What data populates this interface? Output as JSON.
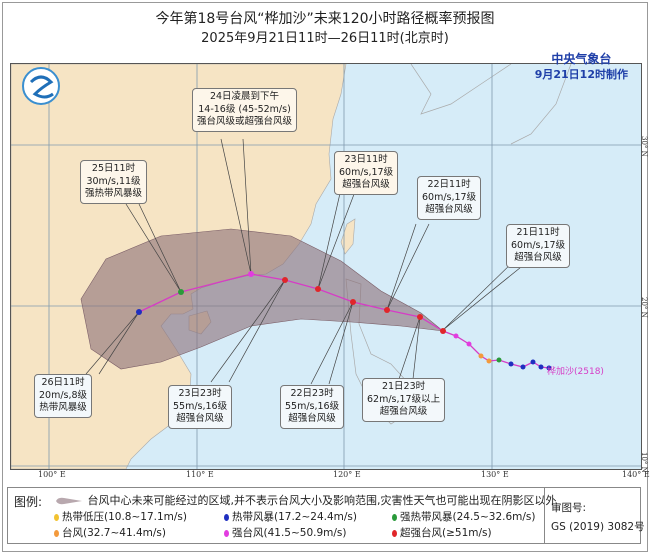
{
  "header": {
    "title": "今年第18号台风“桦加沙”未来120小时路径概率预报图",
    "subtitle": "2025年9月21日11时—26日11时(北京时)"
  },
  "issuer": {
    "name": "中央气象台",
    "issued": "9月21日12时制作"
  },
  "typhoon_label": "桦加沙(2518)",
  "axes": {
    "longitude": [
      "100° E",
      "110° E",
      "120° E",
      "130° E",
      "140° E"
    ],
    "latitude": [
      "30° N",
      "20° N",
      "10° N"
    ]
  },
  "forecasts": [
    {
      "lines": [
        "21日11时",
        "60m/s,17级",
        "超强台风级"
      ]
    },
    {
      "lines": [
        "21日23时",
        "62m/s,17级以上",
        "超强台风级"
      ]
    },
    {
      "lines": [
        "22日11时",
        "60m/s,17级",
        "超强台风级"
      ]
    },
    {
      "lines": [
        "22日23时",
        "55m/s,16级",
        "超强台风级"
      ]
    },
    {
      "lines": [
        "23日11时",
        "60m/s,17级",
        "超强台风级"
      ]
    },
    {
      "lines": [
        "23日23时",
        "55m/s,16级",
        "超强台风级"
      ]
    },
    {
      "lines": [
        "24日凌晨到下午",
        "14-16级 (45-52m/s)",
        "强台风级或超强台风级"
      ]
    },
    {
      "lines": [
        "25日11时",
        "30m/s,11级",
        "强热带风暴级"
      ]
    },
    {
      "lines": [
        "26日11时",
        "20m/s,8级",
        "热带风暴级"
      ]
    }
  ],
  "legend": {
    "title": "图例:",
    "cone_note": "台风中心未来可能经过的区域,并不表示台风大小及影响范围,灾害性天气也可能出现在阴影区以外",
    "items": [
      {
        "label": "热带低压(10.8~17.1m/s)",
        "color": "#f2c230"
      },
      {
        "label": "热带风暴(17.2~24.4m/s)",
        "color": "#1f2fc0"
      },
      {
        "label": "强热带风暴(24.5~32.6m/s)",
        "color": "#2a9a3a"
      },
      {
        "label": "台风(32.7~41.4m/s)",
        "color": "#f39a3c"
      },
      {
        "label": "强台风(41.5~50.9m/s)",
        "color": "#e23ce0"
      },
      {
        "label": "超强台风(≥51m/s)",
        "color": "#e0262a"
      }
    ],
    "approval_label": "审图号:",
    "approval_number": "GS (2019) 3082号"
  },
  "colors": {
    "land": "#f6e4c4",
    "sea": "#d6ecf8",
    "cone": "#8c6f78",
    "track": "#d63cc6"
  }
}
